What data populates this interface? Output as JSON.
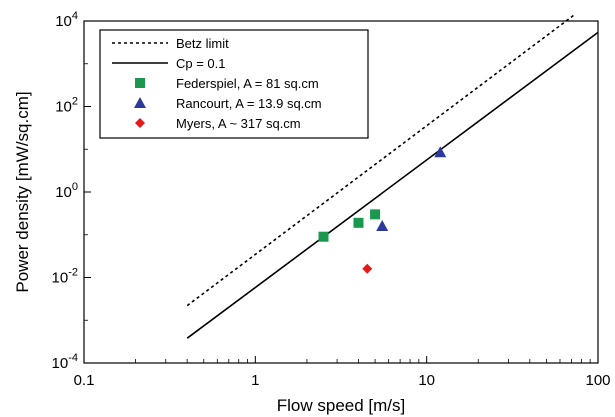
{
  "chart_data": {
    "type": "scatter",
    "title": "",
    "xlabel": "Flow speed [m/s]",
    "ylabel": "Power density [mW/sq.cm]",
    "xscale": "log",
    "yscale": "log",
    "xlim": [
      0.1,
      100
    ],
    "ylim": [
      0.0001,
      10000
    ],
    "x_ticks": [
      {
        "value": 0.1,
        "label": "0.1"
      },
      {
        "value": 1,
        "label": "1"
      },
      {
        "value": 10,
        "label": "10"
      },
      {
        "value": 100,
        "label": "100"
      }
    ],
    "y_ticks": [
      {
        "value": 0.0001,
        "base": "10",
        "exp": "-4"
      },
      {
        "value": 0.01,
        "base": "10",
        "exp": "-2"
      },
      {
        "value": 1,
        "base": "10",
        "exp": "0"
      },
      {
        "value": 100,
        "base": "10",
        "exp": "2"
      },
      {
        "value": 10000,
        "base": "10",
        "exp": "4"
      }
    ],
    "grid": false,
    "legend_position": "top-left",
    "series": [
      {
        "name": "Betz limit",
        "kind": "line",
        "style": "dotted",
        "color": "#000000",
        "x": [
          0.4,
          72
        ],
        "y": [
          0.0022,
          13500
        ]
      },
      {
        "name": "Cp = 0.1",
        "kind": "line",
        "style": "solid",
        "color": "#000000",
        "x": [
          0.4,
          100
        ],
        "y": [
          0.00038,
          5400
        ]
      },
      {
        "name": "Federspiel, A = 81 sq.cm",
        "kind": "scatter",
        "marker": "square",
        "color": "#1a9850",
        "x": [
          2.5,
          4.0,
          5.0
        ],
        "y": [
          0.09,
          0.19,
          0.3
        ]
      },
      {
        "name": "Rancourt, A = 13.9 sq.cm",
        "kind": "scatter",
        "marker": "triangle",
        "color": "#2b3a9a",
        "x": [
          5.5,
          12.0
        ],
        "y": [
          0.16,
          8.5
        ]
      },
      {
        "name": "Myers, A ~ 317 sq.cm",
        "kind": "scatter",
        "marker": "diamond",
        "color": "#e31a1c",
        "x": [
          4.5
        ],
        "y": [
          0.016
        ]
      }
    ]
  }
}
